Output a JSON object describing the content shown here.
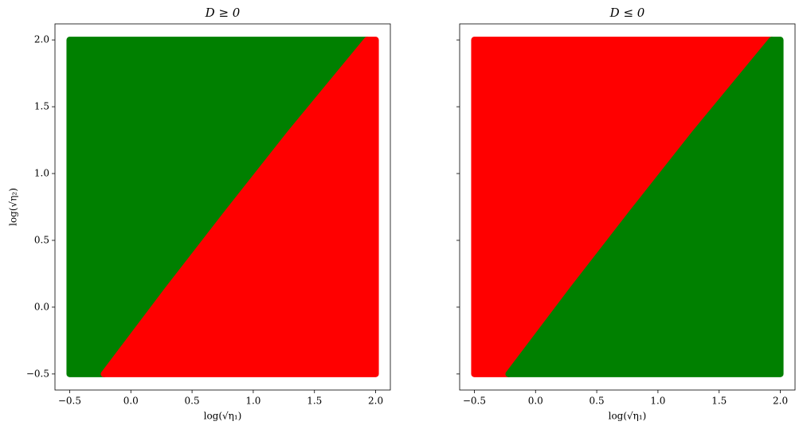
{
  "chart_data": [
    {
      "type": "scatter",
      "title": "D ≥ 0",
      "x_label": "log(√η₁)",
      "y_label": "log(√η₂)",
      "series": [
        {
          "color": "#008000",
          "x": [
            -0.5,
            -0.22,
            0.3,
            0.8,
            1.3,
            1.93,
            -0.5
          ],
          "y": [
            -0.5,
            -0.5,
            0.13,
            0.72,
            1.3,
            2.0,
            2.0
          ]
        },
        {
          "color": "#ff0000",
          "x": [
            -0.22,
            2.0,
            2.0,
            1.93,
            1.3,
            0.8,
            0.3
          ],
          "y": [
            -0.5,
            -0.5,
            2.0,
            2.0,
            1.3,
            0.72,
            0.13
          ]
        }
      ],
      "xlim": [
        -0.62,
        2.12
      ],
      "ylim": [
        -0.62,
        2.12
      ],
      "xticks": [
        {
          "value": -0.5,
          "label": "−0.5"
        },
        {
          "value": 0,
          "label": "0.0"
        },
        {
          "value": 0.5,
          "label": "0.5"
        },
        {
          "value": 1,
          "label": "1.0"
        },
        {
          "value": 1.5,
          "label": "1.5"
        },
        {
          "value": 2,
          "label": "2.0"
        }
      ],
      "yticks": [
        {
          "value": -0.5,
          "label": "−0.5"
        },
        {
          "value": 0,
          "label": "0.0"
        },
        {
          "value": 0.5,
          "label": "0.5"
        },
        {
          "value": 1,
          "label": "1.0"
        },
        {
          "value": 1.5,
          "label": "1.5"
        },
        {
          "value": 2,
          "label": "2.0"
        }
      ]
    },
    {
      "type": "scatter",
      "title": "D ≤ 0",
      "x_label": "log(√η₁)",
      "series": [
        {
          "color": "#ff0000",
          "x": [
            -0.5,
            -0.22,
            0.3,
            0.8,
            1.3,
            1.93,
            -0.5
          ],
          "y": [
            -0.5,
            -0.5,
            0.13,
            0.72,
            1.3,
            2.0,
            2.0
          ]
        },
        {
          "color": "#008000",
          "x": [
            -0.22,
            2.0,
            2.0,
            1.93,
            1.3,
            0.8,
            0.3
          ],
          "y": [
            -0.5,
            -0.5,
            2.0,
            2.0,
            1.3,
            0.72,
            0.13
          ]
        }
      ],
      "xlim": [
        -0.62,
        2.12
      ],
      "ylim": [
        -0.62,
        2.12
      ],
      "xticks": [
        {
          "value": -0.5,
          "label": "−0.5"
        },
        {
          "value": 0,
          "label": "0.0"
        },
        {
          "value": 0.5,
          "label": "0.5"
        },
        {
          "value": 1,
          "label": "1.0"
        },
        {
          "value": 1.5,
          "label": "1.5"
        },
        {
          "value": 2,
          "label": "2.0"
        }
      ],
      "yticks": [
        -0.5,
        0,
        0.5,
        1,
        1.5,
        2
      ]
    }
  ]
}
